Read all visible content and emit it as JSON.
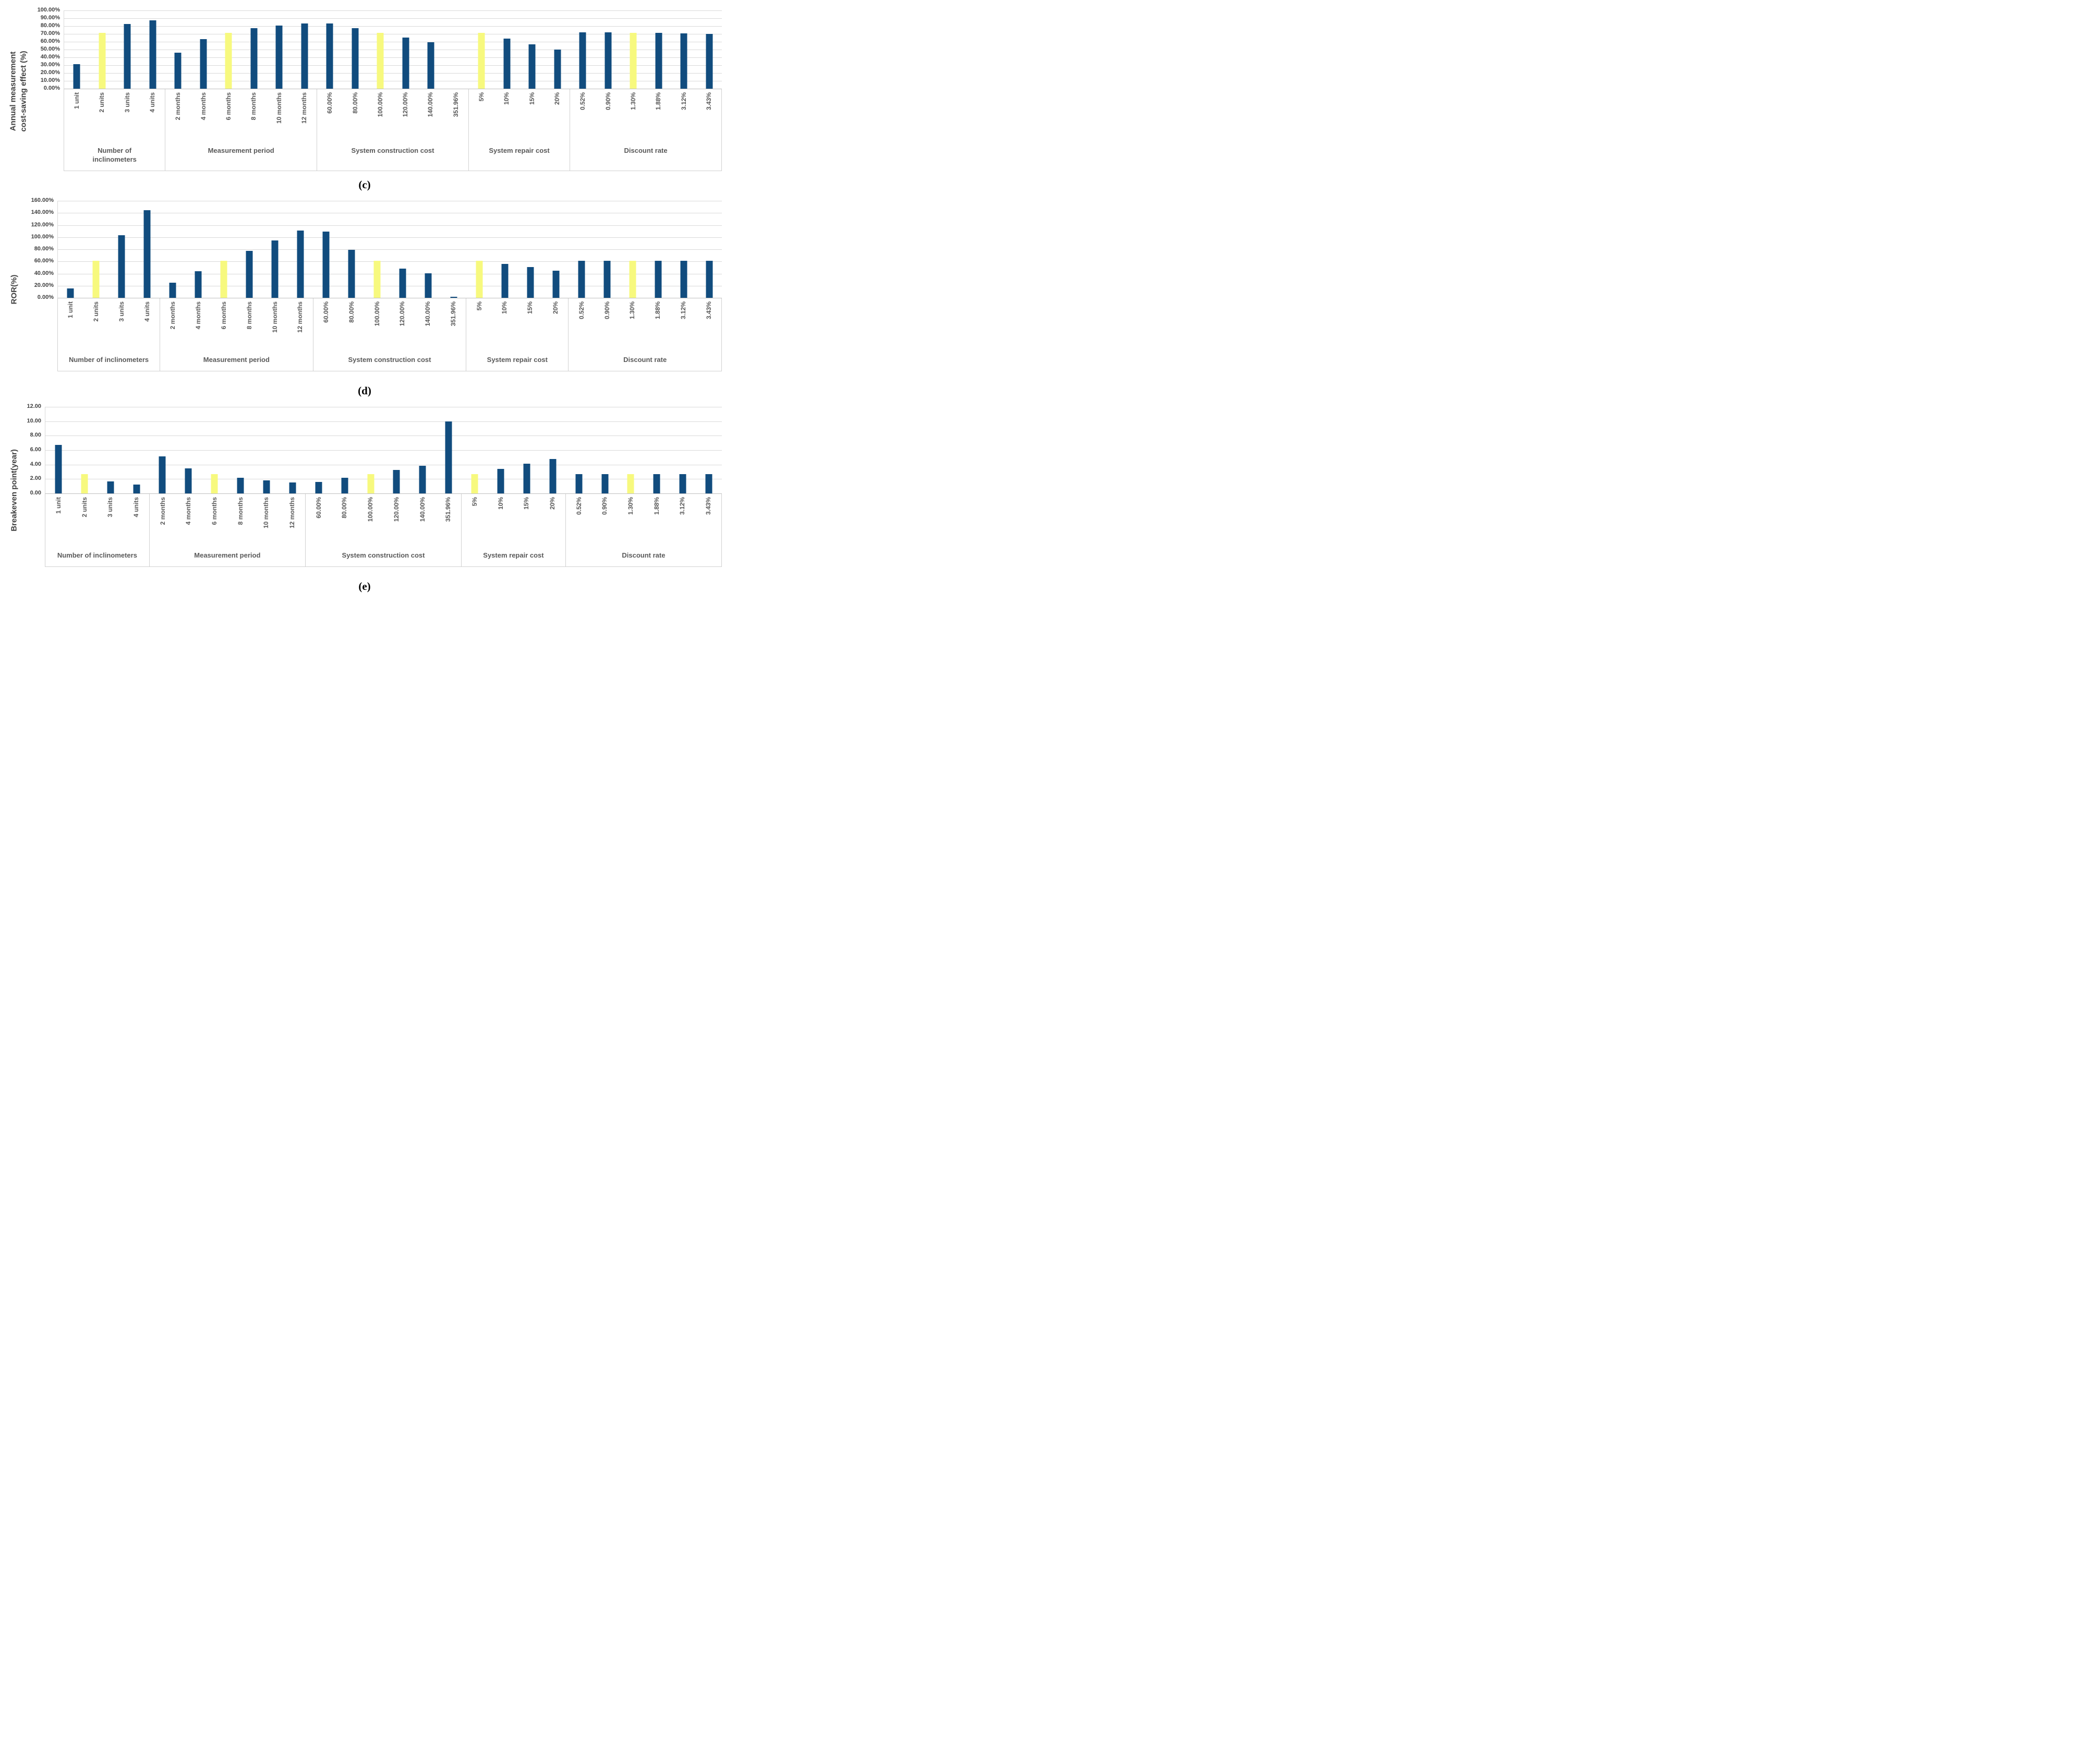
{
  "colors": {
    "bar_blue": "#114C7E",
    "bar_highlight": "#F7F97E",
    "gridline": "#D9D9D9",
    "axis_line": "#BFBFBF",
    "box_border": "#D0D0D0",
    "x_tick_text": "#595959",
    "y_tick_text": "#404040",
    "group_label_text": "#595959",
    "axis_title_text": "#404040",
    "caption_text": "#000000"
  },
  "chart_data": [
    {
      "type": "bar",
      "caption": "(c)",
      "y_axis_title_lines": [
        "Annual measurement",
        "cost-saving effect (%)"
      ],
      "ylabel": "Annual measurement cost-saving effect (%)",
      "ylim": [
        0,
        100
      ],
      "grid": true,
      "legend": "none",
      "yticks": [
        "100.00%",
        "90.00%",
        "80.00%",
        "70.00%",
        "60.00%",
        "50.00%",
        "40.00%",
        "30.00%",
        "20.00%",
        "10.00%",
        "0.00%"
      ],
      "highlight_meaning": "yellow bars = baseline scenario",
      "groups": [
        {
          "label": "Number of inclinometers",
          "items": [
            {
              "label": "1 unit",
              "value": 31.0,
              "highlight": false
            },
            {
              "label": "2 units",
              "value": 71.5,
              "highlight": true
            },
            {
              "label": "3 units",
              "value": 82.4,
              "highlight": false
            },
            {
              "label": "4 units",
              "value": 87.0,
              "highlight": false
            }
          ]
        },
        {
          "label": "Measurement period",
          "items": [
            {
              "label": "2 months",
              "value": 46.0,
              "highlight": false
            },
            {
              "label": "4 months",
              "value": 63.0,
              "highlight": false
            },
            {
              "label": "6 months",
              "value": 71.5,
              "highlight": true
            },
            {
              "label": "8 months",
              "value": 77.0,
              "highlight": false
            },
            {
              "label": "10 months",
              "value": 80.5,
              "highlight": false
            },
            {
              "label": "12 months",
              "value": 83.0,
              "highlight": false
            }
          ]
        },
        {
          "label": "System construction cost",
          "items": [
            {
              "label": "60.00%",
              "value": 83.0,
              "highlight": false
            },
            {
              "label": "80.00%",
              "value": 77.0,
              "highlight": false
            },
            {
              "label": "100.00%",
              "value": 71.5,
              "highlight": true
            },
            {
              "label": "120.00%",
              "value": 65.5,
              "highlight": false
            },
            {
              "label": "140.00%",
              "value": 59.5,
              "highlight": false
            },
            {
              "label": "351.96%",
              "value": 0,
              "highlight": false
            }
          ]
        },
        {
          "label": "System repair cost",
          "items": [
            {
              "label": "5%",
              "value": 71.5,
              "highlight": true
            },
            {
              "label": "10%",
              "value": 64.0,
              "highlight": false
            },
            {
              "label": "15%",
              "value": 57.0,
              "highlight": false
            },
            {
              "label": "20%",
              "value": 50.0,
              "highlight": false
            }
          ]
        },
        {
          "label": "Discount rate",
          "items": [
            {
              "label": "0.52%",
              "value": 72.0,
              "highlight": false
            },
            {
              "label": "0.90%",
              "value": 72.0,
              "highlight": false
            },
            {
              "label": "1.30%",
              "value": 71.5,
              "highlight": true
            },
            {
              "label": "1.88%",
              "value": 71.2,
              "highlight": false
            },
            {
              "label": "3.12%",
              "value": 70.4,
              "highlight": false
            },
            {
              "label": "3.43%",
              "value": 69.9,
              "highlight": false
            }
          ]
        }
      ]
    },
    {
      "type": "bar",
      "caption": "(d)",
      "y_axis_title_lines": [
        "ROR(%)"
      ],
      "ylabel": "ROR(%)",
      "ylim": [
        0,
        160
      ],
      "grid": true,
      "legend": "none",
      "yticks": [
        "160.00%",
        "140.00%",
        "120.00%",
        "100.00%",
        "80.00%",
        "60.00%",
        "40.00%",
        "20.00%",
        "0.00%"
      ],
      "highlight_meaning": "yellow bars = baseline scenario",
      "groups": [
        {
          "label": "Number of inclinometers",
          "items": [
            {
              "label": "1 unit",
              "value": 15.3,
              "highlight": false
            },
            {
              "label": "2 units",
              "value": 61.0,
              "highlight": true
            },
            {
              "label": "3 units",
              "value": 103.5,
              "highlight": false
            },
            {
              "label": "4 units",
              "value": 144.5,
              "highlight": false
            }
          ]
        },
        {
          "label": "Measurement period",
          "items": [
            {
              "label": "2 months",
              "value": 25.2,
              "highlight": false
            },
            {
              "label": "4 months",
              "value": 43.5,
              "highlight": false
            },
            {
              "label": "6 months",
              "value": 61.0,
              "highlight": true
            },
            {
              "label": "8 months",
              "value": 77.5,
              "highlight": false
            },
            {
              "label": "10 months",
              "value": 94.5,
              "highlight": false
            },
            {
              "label": "12 months",
              "value": 111.0,
              "highlight": false
            }
          ]
        },
        {
          "label": "System construction cost",
          "items": [
            {
              "label": "60.00%",
              "value": 109.0,
              "highlight": false
            },
            {
              "label": "80.00%",
              "value": 79.0,
              "highlight": false
            },
            {
              "label": "100.00%",
              "value": 61.0,
              "highlight": true
            },
            {
              "label": "120.00%",
              "value": 48.5,
              "highlight": false
            },
            {
              "label": "140.00%",
              "value": 40.0,
              "highlight": false
            },
            {
              "label": "351.96%",
              "value": 1.7,
              "highlight": false
            }
          ]
        },
        {
          "label": "System repair cost",
          "items": [
            {
              "label": "5%",
              "value": 61.0,
              "highlight": true
            },
            {
              "label": "10%",
              "value": 56.0,
              "highlight": false
            },
            {
              "label": "15%",
              "value": 50.5,
              "highlight": false
            },
            {
              "label": "20%",
              "value": 44.5,
              "highlight": false
            }
          ]
        },
        {
          "label": "Discount rate",
          "items": [
            {
              "label": "0.52%",
              "value": 61.3,
              "highlight": false
            },
            {
              "label": "0.90%",
              "value": 61.0,
              "highlight": false
            },
            {
              "label": "1.30%",
              "value": 61.0,
              "highlight": true
            },
            {
              "label": "1.88%",
              "value": 61.0,
              "highlight": false
            },
            {
              "label": "3.12%",
              "value": 61.0,
              "highlight": false
            },
            {
              "label": "3.43%",
              "value": 61.0,
              "highlight": false
            }
          ]
        }
      ]
    },
    {
      "type": "bar",
      "caption": "(e)",
      "y_axis_title_lines": [
        "Breakeven point(year)"
      ],
      "ylabel": "Breakeven point(year)",
      "ylim": [
        0,
        12
      ],
      "grid": true,
      "legend": "none",
      "yticks": [
        "12.00",
        "10.00",
        "8.00",
        "6.00",
        "4.00",
        "2.00",
        "0.00"
      ],
      "highlight_meaning": "yellow bars = baseline scenario",
      "groups": [
        {
          "label": "Number of inclinometers",
          "items": [
            {
              "label": "1 unit",
              "value": 6.7,
              "highlight": false
            },
            {
              "label": "2 units",
              "value": 2.7,
              "highlight": true
            },
            {
              "label": "3 units",
              "value": 1.65,
              "highlight": false
            },
            {
              "label": "4 units",
              "value": 1.2,
              "highlight": false
            }
          ]
        },
        {
          "label": "Measurement period",
          "items": [
            {
              "label": "2 months",
              "value": 5.15,
              "highlight": false
            },
            {
              "label": "4 months",
              "value": 3.5,
              "highlight": false
            },
            {
              "label": "6 months",
              "value": 2.7,
              "highlight": true
            },
            {
              "label": "8 months",
              "value": 2.15,
              "highlight": false
            },
            {
              "label": "10 months",
              "value": 1.8,
              "highlight": false
            },
            {
              "label": "12 months",
              "value": 1.55,
              "highlight": false
            }
          ]
        },
        {
          "label": "System construction cost",
          "items": [
            {
              "label": "60.00%",
              "value": 1.6,
              "highlight": false
            },
            {
              "label": "80.00%",
              "value": 2.15,
              "highlight": false
            },
            {
              "label": "100.00%",
              "value": 2.7,
              "highlight": true
            },
            {
              "label": "120.00%",
              "value": 3.25,
              "highlight": false
            },
            {
              "label": "140.00%",
              "value": 3.8,
              "highlight": false
            },
            {
              "label": "351.96%",
              "value": 10.0,
              "highlight": false
            }
          ]
        },
        {
          "label": "System repair cost",
          "items": [
            {
              "label": "5%",
              "value": 2.7,
              "highlight": true
            },
            {
              "label": "10%",
              "value": 3.4,
              "highlight": false
            },
            {
              "label": "15%",
              "value": 4.1,
              "highlight": false
            },
            {
              "label": "20%",
              "value": 4.75,
              "highlight": false
            }
          ]
        },
        {
          "label": "Discount rate",
          "items": [
            {
              "label": "0.52%",
              "value": 2.7,
              "highlight": false
            },
            {
              "label": "0.90%",
              "value": 2.7,
              "highlight": false
            },
            {
              "label": "1.30%",
              "value": 2.7,
              "highlight": true
            },
            {
              "label": "1.88%",
              "value": 2.7,
              "highlight": false
            },
            {
              "label": "3.12%",
              "value": 2.65,
              "highlight": false
            },
            {
              "label": "3.43%",
              "value": 2.65,
              "highlight": false
            }
          ]
        }
      ]
    }
  ]
}
